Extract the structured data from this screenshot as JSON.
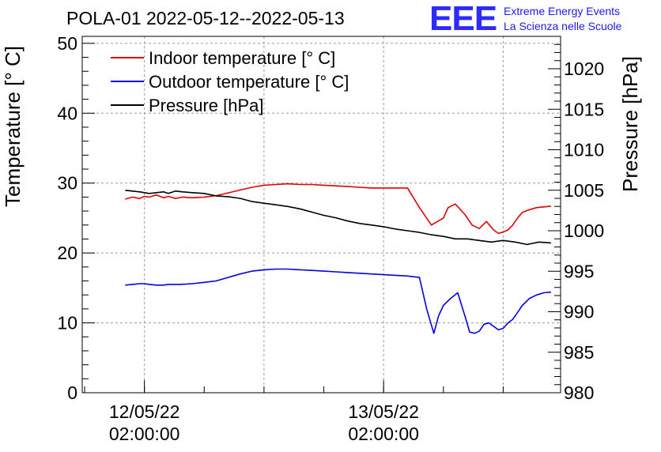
{
  "header": {
    "title": "POLA-01 2022-05-12--2022-05-13",
    "logo_text": "EEE",
    "logo_line1": "Extreme Energy Events",
    "logo_line2": "La Scienza nelle Scuole"
  },
  "colors": {
    "indoor": "#e00000",
    "outdoor": "#0000e0",
    "pressure": "#000000",
    "logo": "#2b2bff"
  },
  "chart_data": {
    "type": "line",
    "title": "POLA-01 2022-05-12--2022-05-13",
    "xlabel": "",
    "ylabel": "Temperature [° C]",
    "y2label": "Pressure [hPa]",
    "xlim": [
      -0.26,
      1.74
    ],
    "x_unit": "days since 12/05/22 02:00:00",
    "ylim": [
      0,
      51
    ],
    "y2lim": [
      980,
      1024
    ],
    "grid": true,
    "legend_position": "top-left",
    "x_ticks": [
      {
        "value": 0,
        "line1": "12/05/22",
        "line2": "02:00:00"
      },
      {
        "value": 1,
        "line1": "13/05/22",
        "line2": "02:00:00"
      }
    ],
    "y_ticks": [
      0,
      10,
      20,
      30,
      40,
      50
    ],
    "y2_ticks": [
      980,
      985,
      990,
      995,
      1000,
      1005,
      1010,
      1015,
      1020
    ],
    "series": [
      {
        "name": "Indoor temperature [° C]",
        "axis": "left",
        "color": "#e00000",
        "x": [
          -0.08,
          -0.05,
          -0.02,
          0.0,
          0.02,
          0.05,
          0.08,
          0.1,
          0.13,
          0.16,
          0.2,
          0.25,
          0.3,
          0.35,
          0.4,
          0.45,
          0.5,
          0.55,
          0.6,
          0.65,
          0.7,
          0.75,
          0.8,
          0.85,
          0.9,
          0.95,
          1.0,
          1.05,
          1.1,
          1.15,
          1.2,
          1.25,
          1.27,
          1.3,
          1.34,
          1.37,
          1.4,
          1.43,
          1.46,
          1.48,
          1.5,
          1.52,
          1.54,
          1.56,
          1.58,
          1.61,
          1.64,
          1.67,
          1.7
        ],
        "y": [
          27.7,
          28.0,
          27.8,
          28.1,
          28.0,
          28.3,
          27.9,
          28.1,
          27.8,
          28.0,
          27.9,
          28.0,
          28.2,
          28.6,
          29.0,
          29.4,
          29.7,
          29.8,
          29.9,
          29.8,
          29.8,
          29.7,
          29.6,
          29.5,
          29.4,
          29.3,
          29.3,
          29.3,
          29.3,
          26.5,
          24.0,
          25.0,
          26.5,
          27.0,
          25.5,
          24.0,
          23.5,
          24.5,
          23.3,
          22.8,
          23.0,
          23.3,
          24.0,
          25.0,
          25.8,
          26.2,
          26.5,
          26.6,
          26.7
        ]
      },
      {
        "name": "Outdoor temperature [° C]",
        "axis": "left",
        "color": "#0000e0",
        "x": [
          -0.08,
          -0.05,
          -0.02,
          0.0,
          0.02,
          0.05,
          0.08,
          0.1,
          0.15,
          0.2,
          0.25,
          0.3,
          0.35,
          0.4,
          0.45,
          0.5,
          0.55,
          0.6,
          0.65,
          0.7,
          0.75,
          0.8,
          0.85,
          0.9,
          0.95,
          1.0,
          1.05,
          1.1,
          1.15,
          1.18,
          1.21,
          1.23,
          1.25,
          1.28,
          1.31,
          1.34,
          1.36,
          1.38,
          1.4,
          1.42,
          1.44,
          1.46,
          1.48,
          1.5,
          1.52,
          1.54,
          1.56,
          1.58,
          1.61,
          1.64,
          1.67,
          1.7
        ],
        "y": [
          15.4,
          15.5,
          15.6,
          15.6,
          15.5,
          15.4,
          15.4,
          15.5,
          15.5,
          15.6,
          15.8,
          16.0,
          16.5,
          17.0,
          17.4,
          17.6,
          17.7,
          17.7,
          17.6,
          17.5,
          17.4,
          17.3,
          17.2,
          17.1,
          17.0,
          16.9,
          16.8,
          16.7,
          16.5,
          12.0,
          8.5,
          11.0,
          12.5,
          13.5,
          14.3,
          11.0,
          8.7,
          8.5,
          8.8,
          9.8,
          10.0,
          9.5,
          9.0,
          9.2,
          10.0,
          10.5,
          11.5,
          12.5,
          13.5,
          14.0,
          14.3,
          14.4
        ]
      },
      {
        "name": "Pressure [hPa]",
        "axis": "right",
        "color": "#000000",
        "x": [
          -0.08,
          -0.05,
          -0.02,
          0.0,
          0.02,
          0.05,
          0.08,
          0.1,
          0.13,
          0.16,
          0.2,
          0.25,
          0.3,
          0.35,
          0.4,
          0.45,
          0.5,
          0.55,
          0.6,
          0.65,
          0.7,
          0.75,
          0.8,
          0.85,
          0.9,
          0.95,
          1.0,
          1.05,
          1.1,
          1.15,
          1.2,
          1.25,
          1.3,
          1.35,
          1.4,
          1.45,
          1.5,
          1.55,
          1.6,
          1.65,
          1.7
        ],
        "y": [
          1005.0,
          1004.9,
          1004.8,
          1004.7,
          1004.6,
          1004.7,
          1004.8,
          1004.6,
          1004.9,
          1004.8,
          1004.7,
          1004.6,
          1004.3,
          1004.2,
          1004.0,
          1003.6,
          1003.4,
          1003.2,
          1003.0,
          1002.7,
          1002.3,
          1001.9,
          1001.6,
          1001.2,
          1000.9,
          1000.7,
          1000.5,
          1000.2,
          1000.0,
          999.8,
          999.5,
          999.3,
          999.0,
          999.0,
          998.8,
          998.6,
          998.8,
          998.6,
          998.3,
          998.6,
          998.5
        ]
      }
    ]
  }
}
